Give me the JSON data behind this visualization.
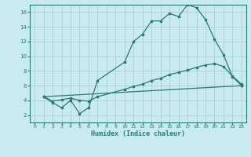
{
  "xlabel": "Humidex (Indice chaleur)",
  "bg_color": "#c8eaf0",
  "line_color": "#2d7a6e",
  "grid_color": "#a8d0d8",
  "xlim": [
    -0.5,
    23.5
  ],
  "ylim": [
    1,
    17
  ],
  "xticks": [
    0,
    1,
    2,
    3,
    4,
    5,
    6,
    7,
    8,
    9,
    10,
    11,
    12,
    13,
    14,
    15,
    16,
    17,
    18,
    19,
    20,
    21,
    22,
    23
  ],
  "yticks": [
    2,
    4,
    6,
    8,
    10,
    12,
    14,
    16
  ],
  "line1_x": [
    1,
    2,
    3,
    4,
    5,
    6,
    7,
    10,
    11,
    12,
    13,
    14,
    15,
    16,
    17,
    18,
    19,
    20,
    21,
    22,
    23
  ],
  "line1_y": [
    4.5,
    3.7,
    3.0,
    4.0,
    2.2,
    3.0,
    6.7,
    9.2,
    12.0,
    13.0,
    14.8,
    14.8,
    15.8,
    15.4,
    17.0,
    16.6,
    15.0,
    12.3,
    10.2,
    7.2,
    6.0
  ],
  "line2_x": [
    1,
    2,
    3,
    4,
    5,
    6,
    7,
    10,
    11,
    12,
    13,
    14,
    15,
    16,
    17,
    18,
    19,
    20,
    21,
    22,
    23
  ],
  "line2_y": [
    4.5,
    3.9,
    4.1,
    4.3,
    4.0,
    3.9,
    4.5,
    5.5,
    5.9,
    6.2,
    6.7,
    7.0,
    7.5,
    7.8,
    8.1,
    8.5,
    8.8,
    9.0,
    8.6,
    7.3,
    6.2
  ],
  "line3_x": [
    1,
    23
  ],
  "line3_y": [
    4.5,
    6.0
  ]
}
